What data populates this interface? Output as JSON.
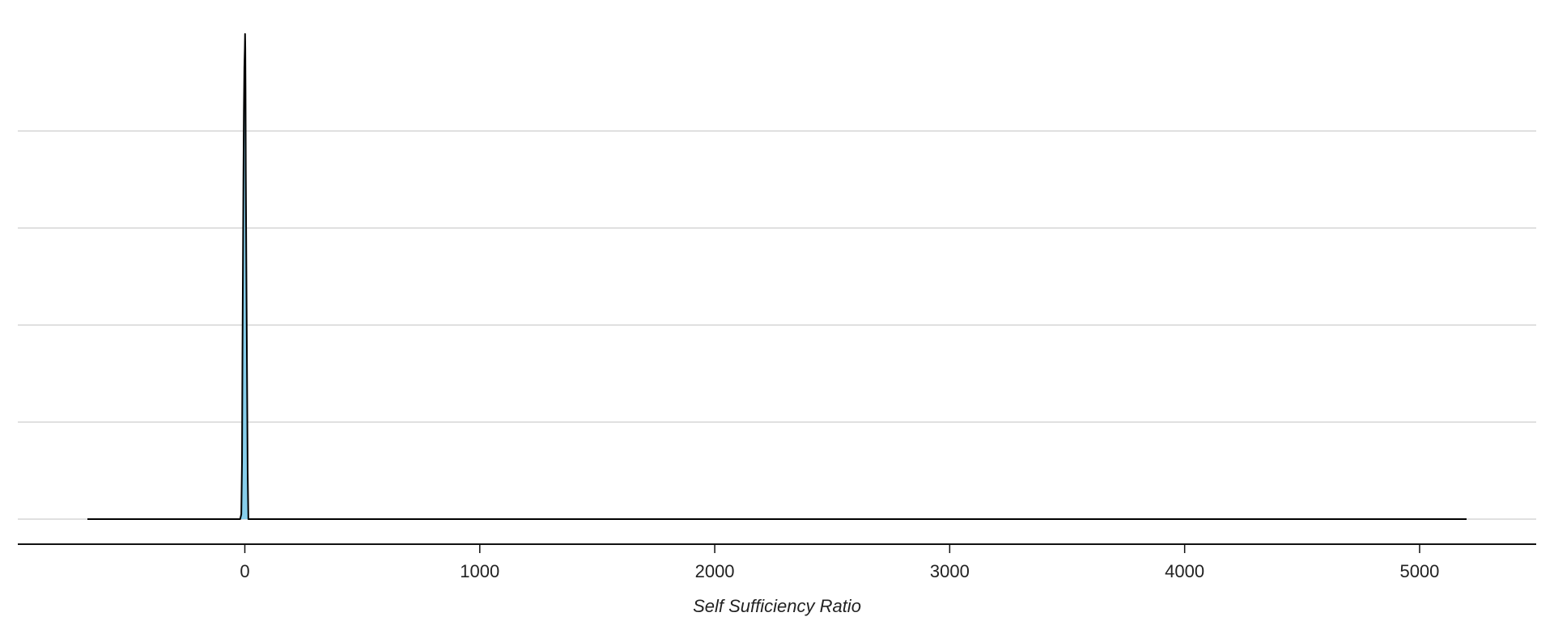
{
  "chart_data": {
    "type": "area",
    "xlabel": "Self Sufficiency Ratio",
    "ylabel": "",
    "xlim": [
      -670,
      5200
    ],
    "x_ticks": [
      0,
      1000,
      2000,
      3000,
      4000,
      5000
    ],
    "x_tick_labels": [
      "0",
      "1000",
      "2000",
      "3000",
      "4000",
      "5000"
    ],
    "ylim": [
      0,
      1
    ],
    "y_gridlines": [
      0,
      0.2,
      0.4,
      0.6,
      0.8
    ],
    "grid": true,
    "fill_color": "#87CEEB",
    "line_color": "#000000",
    "series": [
      {
        "x": [
          -670,
          -20,
          -15,
          -12,
          -10,
          -8,
          -6,
          -4,
          -2,
          0,
          1,
          2,
          3,
          4,
          6,
          8,
          10,
          12,
          15,
          5200
        ],
        "y": [
          0,
          0,
          0.01,
          0.12,
          0.35,
          0.52,
          0.7,
          0.84,
          0.93,
          0.97,
          1.0,
          0.97,
          0.88,
          0.72,
          0.55,
          0.4,
          0.25,
          0.1,
          0,
          0
        ]
      }
    ]
  }
}
